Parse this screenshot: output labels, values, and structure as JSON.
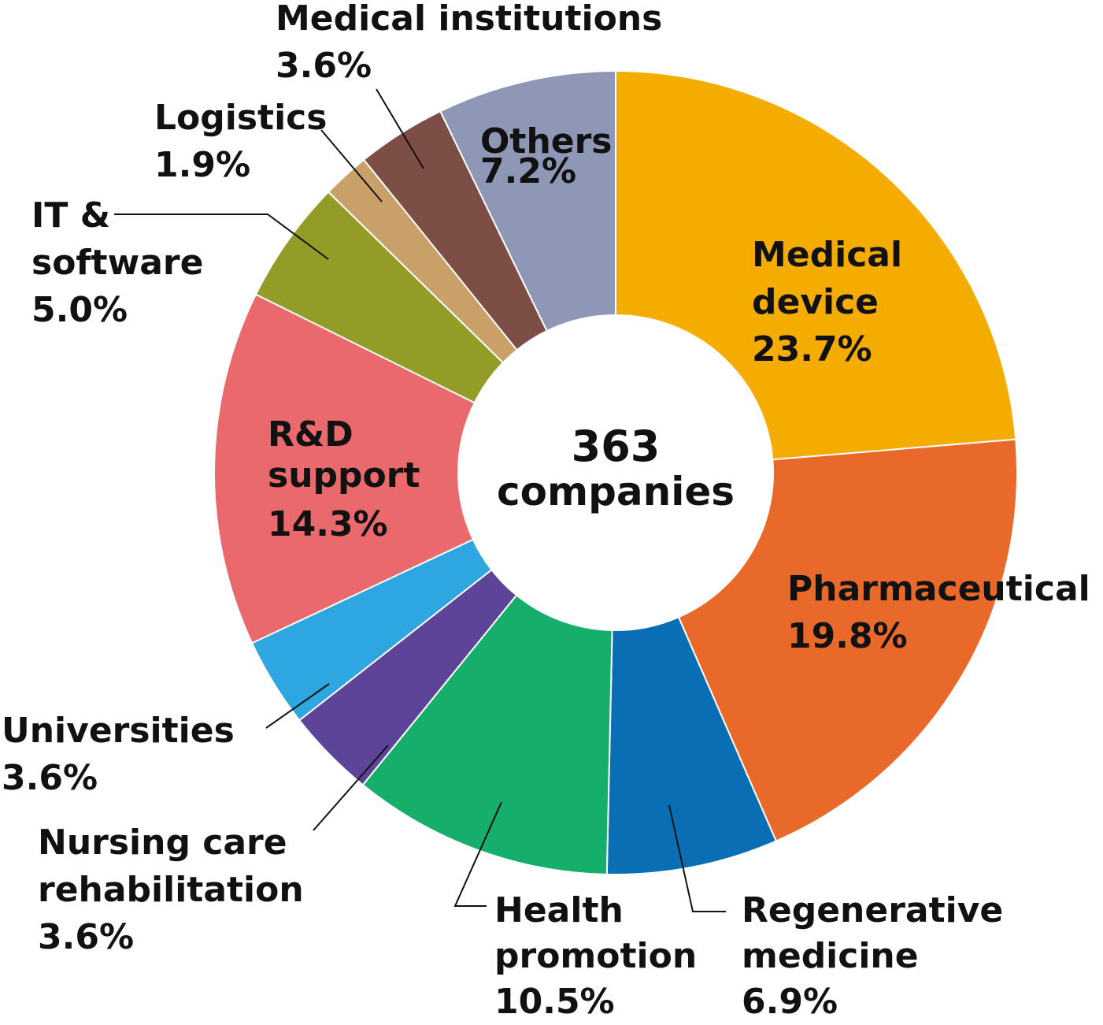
{
  "chart_data": {
    "type": "donut",
    "center_text": [
      "363",
      "companies"
    ],
    "slices": [
      {
        "name": "Medical device",
        "label_lines": [
          "Medical",
          "device"
        ],
        "percent_label": "23.7%",
        "value": 23.7,
        "color": "#F5AC00"
      },
      {
        "name": "Pharmaceutical",
        "label_lines": [
          "Pharmaceutical"
        ],
        "percent_label": "19.8%",
        "value": 19.8,
        "color": "#E9692A"
      },
      {
        "name": "Regenerative medicine",
        "label_lines": [
          "Regenerative",
          "medicine"
        ],
        "percent_label": "6.9%",
        "value": 6.9,
        "color": "#0A6EB5"
      },
      {
        "name": "Health promotion",
        "label_lines": [
          "Health",
          "promotion"
        ],
        "percent_label": "10.5%",
        "value": 10.5,
        "color": "#15AE6B"
      },
      {
        "name": "Nursing care rehabilitation",
        "label_lines": [
          "Nursing care",
          "rehabilitation"
        ],
        "percent_label": "3.6%",
        "value": 3.6,
        "color": "#5D4498"
      },
      {
        "name": "Universities",
        "label_lines": [
          "Universities"
        ],
        "percent_label": "3.6%",
        "value": 3.6,
        "color": "#2EA6DF"
      },
      {
        "name": "R&D support",
        "label_lines": [
          "R&D",
          "support"
        ],
        "percent_label": "14.3%",
        "value": 14.3,
        "color": "#E9696C"
      },
      {
        "name": "IT & software",
        "label_lines": [
          "IT &",
          "software"
        ],
        "percent_label": "5.0%",
        "value": 5.0,
        "color": "#929C27"
      },
      {
        "name": "Logistics",
        "label_lines": [
          "Logistics"
        ],
        "percent_label": "1.9%",
        "value": 1.9,
        "color": "#C9A068"
      },
      {
        "name": "Medical institutions",
        "label_lines": [
          "Medical institutions"
        ],
        "percent_label": "3.6%",
        "value": 3.6,
        "color": "#7C4E45"
      },
      {
        "name": "Others",
        "label_lines": [
          "Others"
        ],
        "percent_label": "7.2%",
        "value": 7.2,
        "color": "#8E97B5"
      }
    ]
  }
}
